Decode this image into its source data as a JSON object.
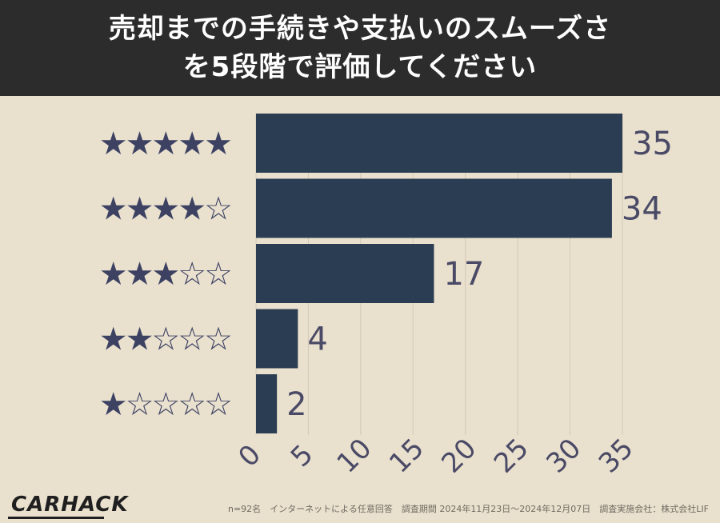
{
  "header": {
    "title_line1": "売却までの手続きや支払いのスムーズさ",
    "title_line2": "を5段階で評価してください"
  },
  "colors": {
    "background": "#e9e0ce",
    "header_bg": "#2c2c2c",
    "bar": "#2b3d52",
    "star": "#3d4263",
    "label": "#4a4a66",
    "grid": "#d2c8b4"
  },
  "chart_data": {
    "type": "bar",
    "orientation": "horizontal",
    "categories": [
      "★★★★★",
      "★★★★☆",
      "★★★☆☆",
      "★★☆☆☆",
      "★☆☆☆☆"
    ],
    "values": [
      35,
      34,
      17,
      4,
      2
    ],
    "data_labels": [
      "35",
      "34",
      "17",
      "4",
      "2"
    ],
    "xlim": [
      0,
      35
    ],
    "xticks": [
      0,
      5,
      10,
      15,
      20,
      25,
      30,
      35
    ],
    "xtick_labels": [
      "0",
      "5",
      "10",
      "15",
      "20",
      "25",
      "30",
      "35"
    ],
    "grid": true
  },
  "footer": {
    "logo": "CARHACK",
    "note": "n=92名　インターネットによる任意回答　調査期間 2024年11月23日〜2024年12月07日　調査実施会社：株式会社LIF"
  }
}
